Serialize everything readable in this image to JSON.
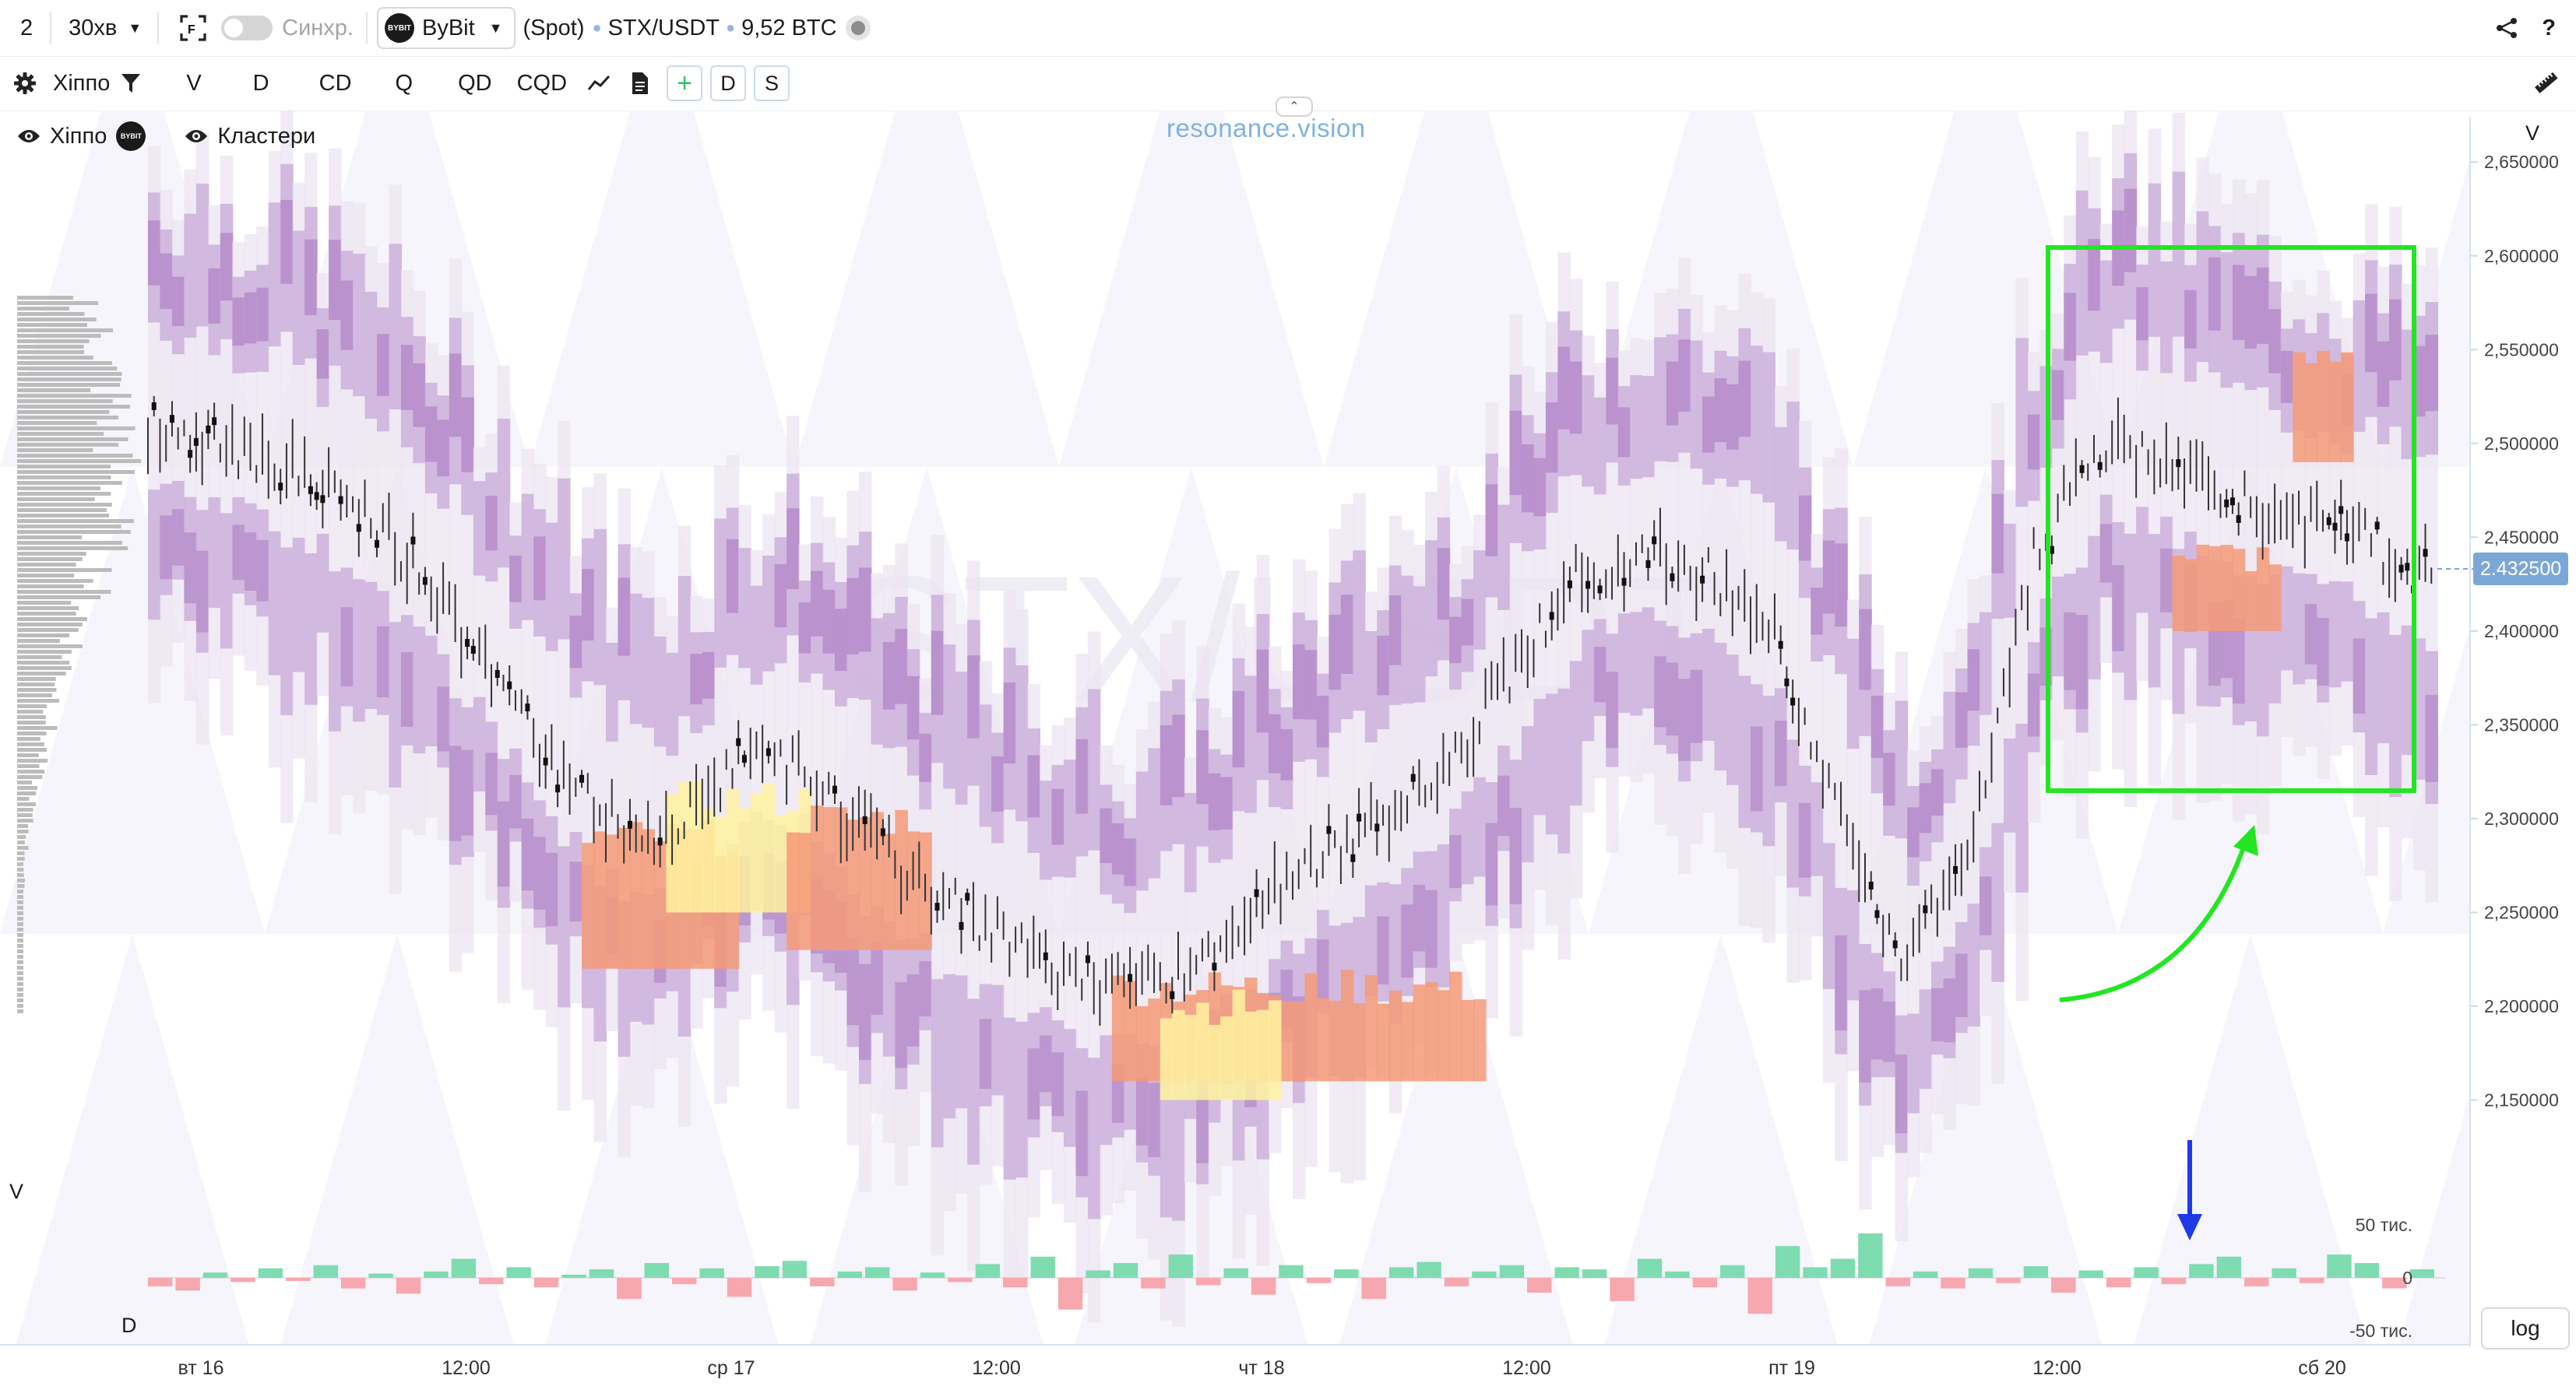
{
  "toolbar": {
    "layout_number": "2",
    "timeframe": "30хв",
    "sync_label": "Синхр.",
    "exchange": "ByBit",
    "exchange_logo_text": "BYBIT",
    "market_type": "(Spot)",
    "symbol": "STX/USDT",
    "volume_btc": "9,52 BTC",
    "help_label": "?"
  },
  "indicators_bar": {
    "profile_name": "Хіппо",
    "items": [
      "V",
      "D",
      "CD",
      "Q",
      "QD",
      "CQD"
    ],
    "toggles": [
      "+",
      "D",
      "S"
    ]
  },
  "chart": {
    "brand": "resonance.vision",
    "watermark": "STX/USDT",
    "legend": [
      {
        "label": "Хіппо"
      },
      {
        "label": "Кластери"
      }
    ],
    "price_axis_title": "V",
    "price_ticks": [
      "2,650000",
      "2,600000",
      "2,550000",
      "2,500000",
      "2,450000",
      "2,400000",
      "2,350000",
      "2,300000",
      "2,250000",
      "2,200000",
      "2,150000"
    ],
    "current_price": "2.432500",
    "time_labels": [
      "вт 16",
      "12:00",
      "ср 17",
      "12:00",
      "чт 18",
      "12:00",
      "пт 19",
      "12:00",
      "сб 20"
    ],
    "lower_pane_left_label": "V",
    "lower_pane_bottom_label": "D",
    "delta_ticks": [
      "50 тис.",
      "0",
      "-50 тис."
    ],
    "log_button": "log",
    "colors": {
      "cluster_light": "#ece4f2",
      "cluster_mid": "#c9acd9",
      "cluster_dark": "#a873bd",
      "hot_orange": "#f59a78",
      "hot_yellow": "#fff2a0",
      "delta_pos": "#7edcb0",
      "delta_neg": "#f7a7ae",
      "highlight_box": "#22e622",
      "arrow_blue": "#1e3ae8",
      "price_tag": "#7ba7d6"
    }
  },
  "chart_data": {
    "type": "heatmap",
    "title": "STX/USDT",
    "ylim": [
      2.11,
      2.67
    ],
    "x": [
      "вт 16",
      "12:00",
      "ср 17",
      "12:00",
      "чт 18",
      "12:00",
      "пт 19",
      "12:00",
      "сб 20"
    ],
    "price_path": [
      2.51,
      2.5,
      2.49,
      2.47,
      2.44,
      2.39,
      2.34,
      2.3,
      2.29,
      2.33,
      2.33,
      2.29,
      2.26,
      2.24,
      2.22,
      2.21,
      2.22,
      2.25,
      2.28,
      2.3,
      2.33,
      2.38,
      2.43,
      2.44,
      2.43,
      2.4,
      2.3,
      2.22,
      2.29,
      2.44,
      2.5,
      2.49,
      2.47,
      2.46,
      2.45,
      2.43
    ],
    "delta": [
      -8,
      -12,
      5,
      -4,
      9,
      -3,
      12,
      -10,
      4,
      -15,
      6,
      18,
      -6,
      10,
      -9,
      3,
      8,
      -20,
      14,
      -6,
      9,
      -18,
      11,
      16,
      -8,
      6,
      10,
      -12,
      5,
      -4,
      13,
      -9,
      20,
      -30,
      7,
      14,
      -10,
      22,
      -7,
      9,
      -16,
      12,
      -5,
      8,
      -20,
      10,
      15,
      -8,
      6,
      12,
      -14,
      10,
      8,
      -22,
      18,
      6,
      -9,
      12,
      -34,
      30,
      10,
      18,
      42,
      -8,
      6,
      -10,
      9,
      -5,
      11,
      -14,
      7,
      -9,
      10,
      -6,
      13,
      20,
      -8,
      9,
      -5,
      22,
      14,
      -10,
      8
    ],
    "delta_ylim": [
      -60000,
      60000
    ]
  }
}
